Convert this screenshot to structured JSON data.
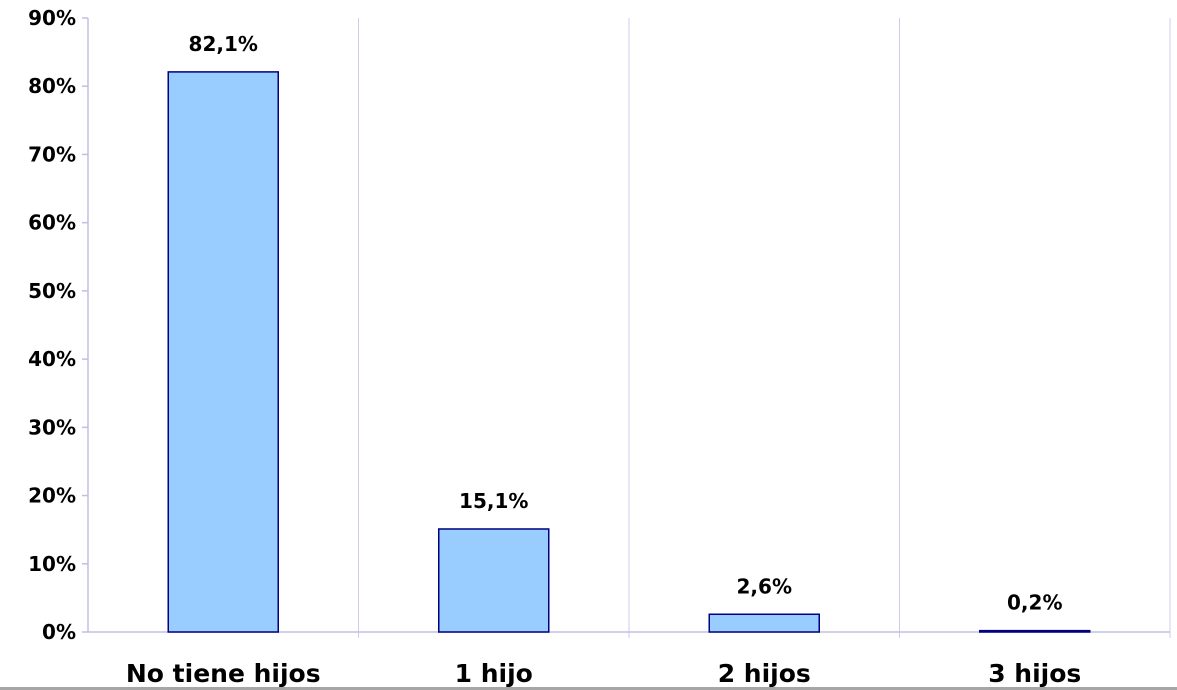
{
  "chart_data": {
    "type": "bar",
    "categories": [
      "No tiene hijos",
      "1 hijo",
      "2 hijos",
      "3 hijos"
    ],
    "values": [
      82.1,
      15.1,
      2.6,
      0.2
    ],
    "data_labels": [
      "82,1%",
      "15,1%",
      "2,6%",
      "0,2%"
    ],
    "y_ticks": [
      "0%",
      "10%",
      "20%",
      "30%",
      "40%",
      "50%",
      "60%",
      "70%",
      "80%",
      "90%"
    ],
    "ylim": [
      0,
      90
    ],
    "grid": "vertical category separators",
    "legend": "none",
    "colors": {
      "bar_fill": "#99ccff",
      "bar_stroke": "#000080",
      "grid": "#ccccee",
      "axis": "#c0c0e0",
      "text": "#000000"
    }
  }
}
